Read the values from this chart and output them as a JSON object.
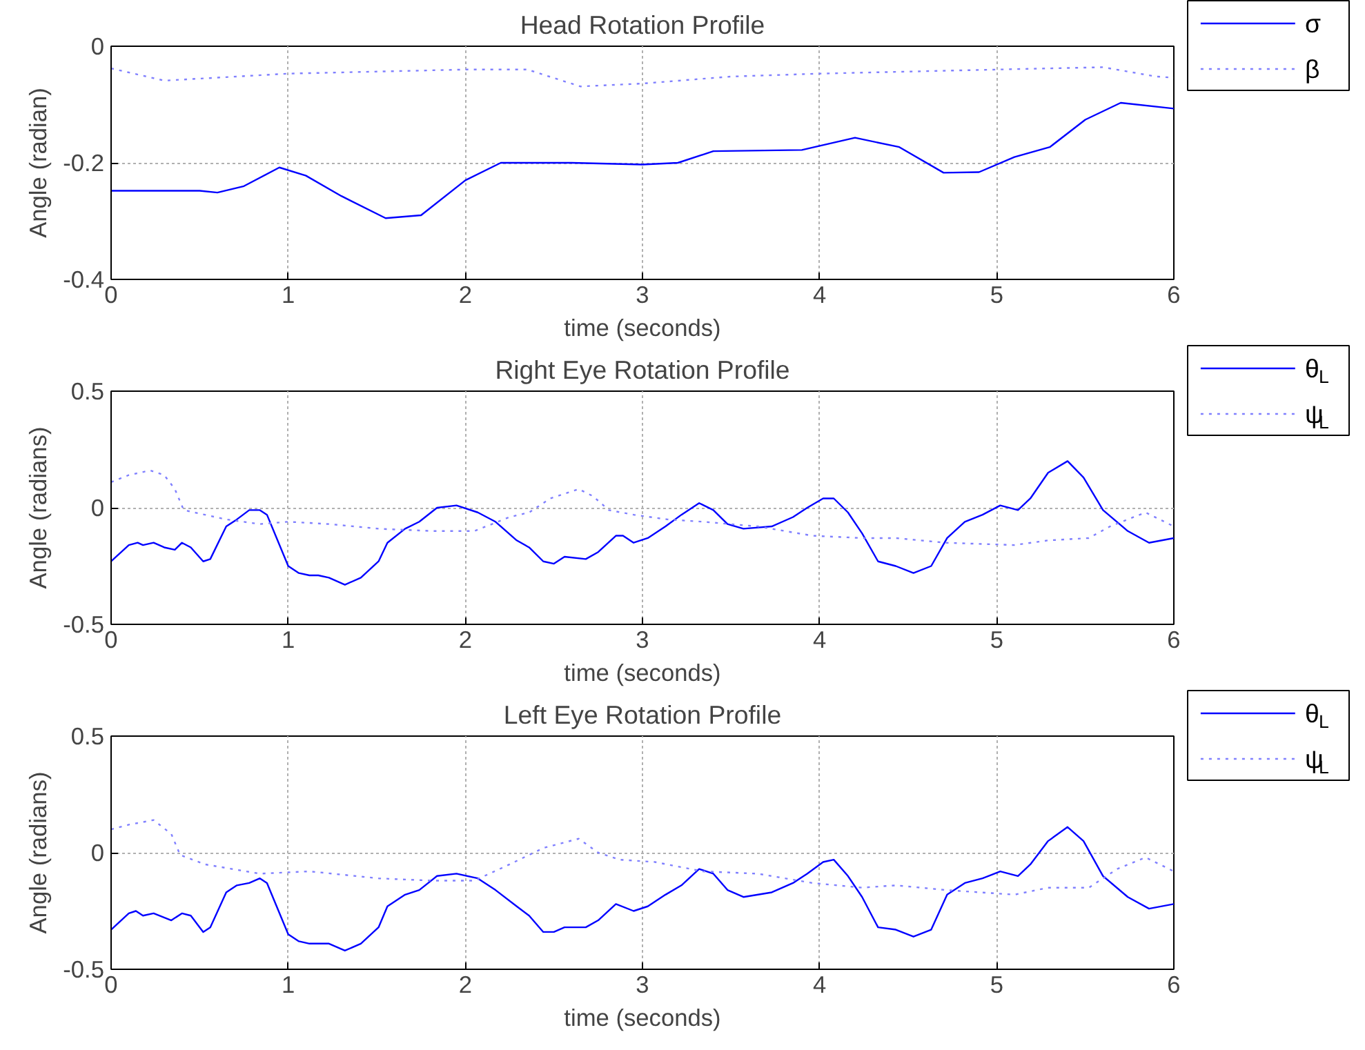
{
  "chart_data": [
    {
      "type": "line",
      "title": "Head Rotation Profile",
      "xlabel": "time (seconds)",
      "ylabel": "Angle (radian)",
      "xlim": [
        0,
        6
      ],
      "ylim": [
        -0.4,
        0
      ],
      "xticks": [
        0,
        1,
        2,
        3,
        4,
        5,
        6
      ],
      "yticks": [
        -0.4,
        -0.2,
        0
      ],
      "grid": true,
      "legend": "top right",
      "marker": "none",
      "series": [
        {
          "name": "σ",
          "color": "#0000ff",
          "line_style": "solid",
          "x": [
            0,
            0.5,
            0.6,
            0.75,
            0.95,
            1.1,
            1.3,
            1.55,
            1.75,
            2.0,
            2.2,
            2.6,
            3.0,
            3.2,
            3.4,
            3.9,
            4.2,
            4.45,
            4.7,
            4.9,
            5.1,
            5.3,
            5.5,
            5.7,
            6.0
          ],
          "values": [
            -0.248,
            -0.248,
            -0.251,
            -0.24,
            -0.208,
            -0.222,
            -0.257,
            -0.295,
            -0.29,
            -0.23,
            -0.2,
            -0.2,
            -0.203,
            -0.2,
            -0.18,
            -0.178,
            -0.157,
            -0.173,
            -0.217,
            -0.216,
            -0.19,
            -0.173,
            -0.126,
            -0.097,
            -0.107
          ]
        },
        {
          "name": "β",
          "color": "#8080ff",
          "line_style": "dotted",
          "x": [
            0,
            0.3,
            1.0,
            2.0,
            2.35,
            2.65,
            3.0,
            3.5,
            4.0,
            5.0,
            5.6,
            5.9,
            6.0
          ],
          "values": [
            -0.038,
            -0.059,
            -0.047,
            -0.04,
            -0.04,
            -0.069,
            -0.064,
            -0.052,
            -0.047,
            -0.04,
            -0.036,
            -0.052,
            -0.054
          ]
        }
      ]
    },
    {
      "type": "line",
      "title": "Right Eye Rotation Profile",
      "xlabel": "time (seconds)",
      "ylabel": "Angle (radians)",
      "xlim": [
        0,
        6
      ],
      "ylim": [
        -0.5,
        0.5
      ],
      "xticks": [
        0,
        1,
        2,
        3,
        4,
        5,
        6
      ],
      "yticks": [
        -0.5,
        0,
        0.5
      ],
      "grid": true,
      "legend": "top right",
      "marker": "none",
      "series": [
        {
          "name": "θ$_{L}$",
          "color": "#0000ff",
          "line_style": "solid",
          "x": [
            0,
            0.1,
            0.15,
            0.18,
            0.24,
            0.3,
            0.36,
            0.4,
            0.45,
            0.52,
            0.56,
            0.65,
            0.71,
            0.78,
            0.84,
            0.88,
            1.0,
            1.06,
            1.12,
            1.17,
            1.23,
            1.32,
            1.41,
            1.51,
            1.56,
            1.66,
            1.74,
            1.84,
            1.95,
            2.07,
            2.17,
            2.29,
            2.36,
            2.44,
            2.5,
            2.56,
            2.68,
            2.75,
            2.85,
            2.89,
            2.95,
            3.03,
            3.13,
            3.22,
            3.32,
            3.4,
            3.48,
            3.57,
            3.73,
            3.85,
            3.93,
            4.02,
            4.08,
            4.16,
            4.24,
            4.33,
            4.43,
            4.53,
            4.63,
            4.72,
            4.82,
            4.92,
            5.02,
            5.12,
            5.19,
            5.29,
            5.4,
            5.49,
            5.6,
            5.74,
            5.86,
            6.0
          ],
          "values": [
            -0.23,
            -0.16,
            -0.15,
            -0.16,
            -0.15,
            -0.17,
            -0.18,
            -0.15,
            -0.17,
            -0.23,
            -0.22,
            -0.08,
            -0.05,
            -0.01,
            -0.01,
            -0.03,
            -0.25,
            -0.28,
            -0.29,
            -0.29,
            -0.3,
            -0.33,
            -0.3,
            -0.23,
            -0.15,
            -0.09,
            -0.06,
            0.0,
            0.01,
            -0.02,
            -0.06,
            -0.14,
            -0.17,
            -0.23,
            -0.24,
            -0.21,
            -0.22,
            -0.19,
            -0.12,
            -0.12,
            -0.15,
            -0.13,
            -0.08,
            -0.03,
            0.02,
            -0.01,
            -0.07,
            -0.09,
            -0.08,
            -0.04,
            0.0,
            0.04,
            0.04,
            -0.02,
            -0.11,
            -0.23,
            -0.25,
            -0.28,
            -0.25,
            -0.13,
            -0.06,
            -0.03,
            0.01,
            -0.01,
            0.04,
            0.15,
            0.2,
            0.13,
            -0.01,
            -0.1,
            -0.15,
            -0.13
          ]
        },
        {
          "name": "ψ$_{L}$",
          "color": "#8080ff",
          "line_style": "dotted",
          "x": [
            0,
            0.1,
            0.22,
            0.3,
            0.36,
            0.41,
            0.53,
            0.65,
            0.84,
            1.0,
            1.23,
            1.51,
            1.82,
            2.05,
            2.25,
            2.36,
            2.48,
            2.64,
            2.72,
            2.81,
            2.95,
            3.14,
            3.34,
            3.65,
            3.96,
            4.24,
            4.43,
            4.71,
            5.1,
            5.29,
            5.52,
            5.64,
            5.84,
            6.0
          ],
          "values": [
            0.11,
            0.14,
            0.16,
            0.14,
            0.08,
            -0.01,
            -0.03,
            -0.05,
            -0.07,
            -0.06,
            -0.07,
            -0.09,
            -0.1,
            -0.1,
            -0.04,
            -0.02,
            0.04,
            0.08,
            0.05,
            -0.01,
            -0.03,
            -0.05,
            -0.06,
            -0.08,
            -0.12,
            -0.13,
            -0.13,
            -0.15,
            -0.16,
            -0.14,
            -0.13,
            -0.08,
            -0.02,
            -0.08
          ]
        }
      ]
    },
    {
      "type": "line",
      "title": "Left Eye Rotation Profile",
      "xlabel": "time (seconds)",
      "ylabel": "Angle (radians)",
      "xlim": [
        0,
        6
      ],
      "ylim": [
        -0.5,
        0.5
      ],
      "xticks": [
        0,
        1,
        2,
        3,
        4,
        5,
        6
      ],
      "yticks": [
        -0.5,
        0,
        0.5
      ],
      "grid": true,
      "legend": "top right",
      "marker": "none",
      "series": [
        {
          "name": "θ$_{L}$",
          "color": "#0000ff",
          "line_style": "solid",
          "x": [
            0,
            0.1,
            0.14,
            0.18,
            0.24,
            0.34,
            0.4,
            0.45,
            0.52,
            0.56,
            0.65,
            0.71,
            0.78,
            0.84,
            0.88,
            1.0,
            1.06,
            1.12,
            1.23,
            1.32,
            1.41,
            1.51,
            1.56,
            1.66,
            1.74,
            1.84,
            1.95,
            2.07,
            2.17,
            2.29,
            2.36,
            2.44,
            2.5,
            2.56,
            2.68,
            2.75,
            2.85,
            2.95,
            3.03,
            3.13,
            3.22,
            3.32,
            3.4,
            3.48,
            3.57,
            3.73,
            3.85,
            3.93,
            4.02,
            4.08,
            4.16,
            4.24,
            4.33,
            4.43,
            4.53,
            4.63,
            4.72,
            4.82,
            4.92,
            5.02,
            5.12,
            5.19,
            5.29,
            5.4,
            5.49,
            5.6,
            5.74,
            5.86,
            6.0
          ],
          "values": [
            -0.33,
            -0.26,
            -0.25,
            -0.27,
            -0.26,
            -0.29,
            -0.26,
            -0.27,
            -0.34,
            -0.32,
            -0.17,
            -0.14,
            -0.13,
            -0.11,
            -0.13,
            -0.35,
            -0.38,
            -0.39,
            -0.39,
            -0.42,
            -0.39,
            -0.32,
            -0.23,
            -0.18,
            -0.16,
            -0.1,
            -0.09,
            -0.11,
            -0.16,
            -0.23,
            -0.27,
            -0.34,
            -0.34,
            -0.32,
            -0.32,
            -0.29,
            -0.22,
            -0.25,
            -0.23,
            -0.18,
            -0.14,
            -0.07,
            -0.09,
            -0.16,
            -0.19,
            -0.17,
            -0.13,
            -0.09,
            -0.04,
            -0.03,
            -0.1,
            -0.19,
            -0.32,
            -0.33,
            -0.36,
            -0.33,
            -0.18,
            -0.13,
            -0.11,
            -0.08,
            -0.1,
            -0.05,
            0.05,
            0.11,
            0.05,
            -0.1,
            -0.19,
            -0.24,
            -0.22
          ]
        },
        {
          "name": "ψ$_{L}$",
          "color": "#8080ff",
          "line_style": "dotted",
          "x": [
            0,
            0.1,
            0.24,
            0.34,
            0.39,
            0.53,
            0.84,
            1.12,
            1.51,
            1.82,
            2.05,
            2.25,
            2.44,
            2.64,
            2.75,
            2.87,
            3.07,
            3.34,
            3.65,
            3.96,
            4.24,
            4.43,
            4.71,
            5.1,
            5.29,
            5.52,
            5.68,
            5.84,
            6.0
          ],
          "values": [
            0.1,
            0.12,
            0.14,
            0.08,
            -0.01,
            -0.05,
            -0.09,
            -0.08,
            -0.11,
            -0.12,
            -0.12,
            -0.05,
            0.02,
            0.06,
            0.0,
            -0.03,
            -0.04,
            -0.08,
            -0.09,
            -0.13,
            -0.15,
            -0.14,
            -0.16,
            -0.18,
            -0.15,
            -0.15,
            -0.07,
            -0.02,
            -0.08
          ]
        }
      ]
    }
  ]
}
